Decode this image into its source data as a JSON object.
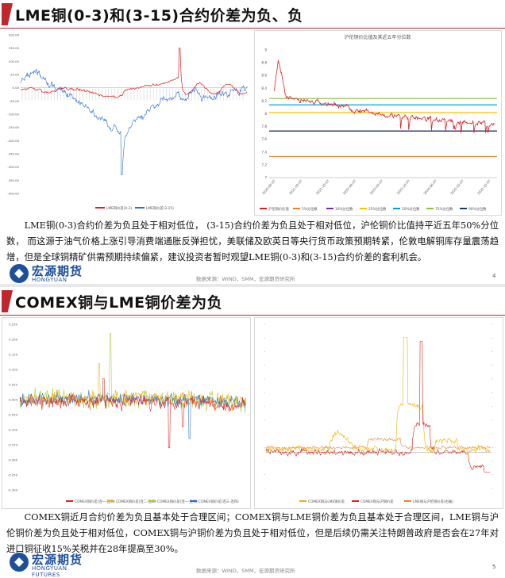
{
  "slide1": {
    "title": "LME铜(0-3)和(3-15)合约价差为负、负",
    "body": "LME铜(0-3)合约价差为负且处于相对低位， (3-15)合约价差为负且处于相对低位，沪伦铜价比值持平近五年50%分位数， 而这源于油气价格上涨引导消费端通胀反弹担忧，美联储及欧英日等央行货币政策预期转紧，伦敦电解铜库存量震荡趋增，但是全球铜精矿供需预期持续偏紧，建议投资者暂时观望LME铜(0-3)和(3-15)合约价差的套利机会。",
    "source": "数据来源：WIND，SMM，宏源期货研究所",
    "page": "4",
    "logo_cn": "宏源期货",
    "logo_en": "HONGYUAN FUTURES"
  },
  "slide2": {
    "title": "COMEX铜与LME铜价差为负",
    "body": "COMEX铜近月合约价差为负且基本处于合理区间；COMEX铜与LME铜价差为负且基本处于合理区间，LME铜与沪伦铜价差为负且处于相对低位，COMEX铜与沪铜价差为负且处于相对低位，但是后续仍需关注特朗普政府是否会在27年对进口铜征收15%关税并在28年提高至30%。",
    "source": "数据来源：WIND，SMM，宏源期货研究所",
    "page": "5",
    "logo_cn": "宏源期货",
    "logo_en": "HONGYUAN FUTURES"
  },
  "colors": {
    "accent": "#c0272d",
    "brand": "#1d4f9b"
  },
  "chart_data": [
    {
      "id": "lme-spreads",
      "type": "line",
      "title": "",
      "ylim": [
        -400,
        200
      ],
      "yticks": [
        "200.00",
        "150.00",
        "100.00",
        "50.00",
        "0.00",
        "-50.00",
        "-100.00",
        "-150.00",
        "-200.00",
        "-250.00",
        "-300.00",
        "-350.00",
        "-400.00"
      ],
      "x_range": [
        "2017-01",
        "2026-01"
      ],
      "series": [
        {
          "name": "LME铜价差(0-3)",
          "color": "#e02020"
        },
        {
          "name": "LME铜价差(3-15)",
          "color": "#2a6fd6"
        }
      ],
      "legend": [
        "LME铜价差(0-3)",
        "LME铜价差(3-15)"
      ]
    },
    {
      "id": "shfe-lme-ratio",
      "type": "line",
      "title": "沪伦铜价比值及其近五年分位数",
      "ylim": [
        7,
        9
      ],
      "yticks": [
        "9",
        "8.8",
        "8.6",
        "8.4",
        "8.2",
        "8",
        "7.8",
        "7.6",
        "7.4",
        "7.2",
        "7"
      ],
      "x_labels": [
        "2020-06-07",
        "2021-02-07",
        "2021-10-07",
        "2022-06-07",
        "2023-02-07",
        "2023-10-07",
        "2024-06-07",
        "2025-02-07",
        "2025-10-07"
      ],
      "series": [
        {
          "name": "沪伦铜价比值",
          "color": "#e02020"
        },
        {
          "name": "5%分位数",
          "color": "#f08030",
          "value": 7.33
        },
        {
          "name": "10%分位数",
          "color": "#7030a0",
          "value": 7.73
        },
        {
          "name": "25%分位数",
          "color": "#ffc000",
          "value": 8.02
        },
        {
          "name": "50%分位数",
          "color": "#00a0e0",
          "value": 8.14
        },
        {
          "name": "75%分位数",
          "color": "#8fc040",
          "value": 8.24
        },
        {
          "name": "90%分位数",
          "color": "#203864",
          "value": 7.73
        }
      ],
      "legend": [
        "沪伦铜价比值",
        "5%分位数",
        "10%分位数",
        "25%分位数",
        "50%分位数",
        "75%分位数",
        "90%分位数"
      ]
    },
    {
      "id": "comex-spreads",
      "type": "line",
      "ylim": [
        -0.3,
        0.25
      ],
      "yticks": [
        "0.250",
        "0.200",
        "0.150",
        "0.100",
        "0.050",
        "0.000",
        "-0.050",
        "-0.100",
        "-0.150",
        "-0.200",
        "-0.250",
        "-0.300"
      ],
      "series": [
        {
          "name": "COMEX铜价差(连一-连二)",
          "color": "#e02020"
        },
        {
          "name": "COMEX铜价差(连二-连三)",
          "color": "#f0b000"
        },
        {
          "name": "COMEX铜价差(连一-连三)",
          "color": "#a8c83a"
        },
        {
          "name": "COMEX铜价差(连三-连四)",
          "color": "#2a6fd6"
        }
      ],
      "legend": [
        "COMEX铜价差(连一-连二)",
        "COMEX铜价差(连二-连三)",
        "COMEX铜价差(连一-连三)",
        "COMEX铜价差(连三-连四)"
      ]
    },
    {
      "id": "cross-market-spreads",
      "type": "line",
      "ylim_left": [
        -400,
        800
      ],
      "ylim_right": [
        -400,
        1600
      ],
      "series": [
        {
          "name": "COMEX铜与LME铜价差",
          "color": "#f0b000"
        },
        {
          "name": "COMEX铜与沪铜价差",
          "color": "#e02020"
        },
        {
          "name": "LME铜与沪伦铜价差(右轴)",
          "color": "#f08030"
        }
      ],
      "legend": [
        "COMEX铜与LME铜价差",
        "COMEX铜与沪铜价差",
        "LME铜与沪伦铜价差(右轴)"
      ]
    }
  ]
}
